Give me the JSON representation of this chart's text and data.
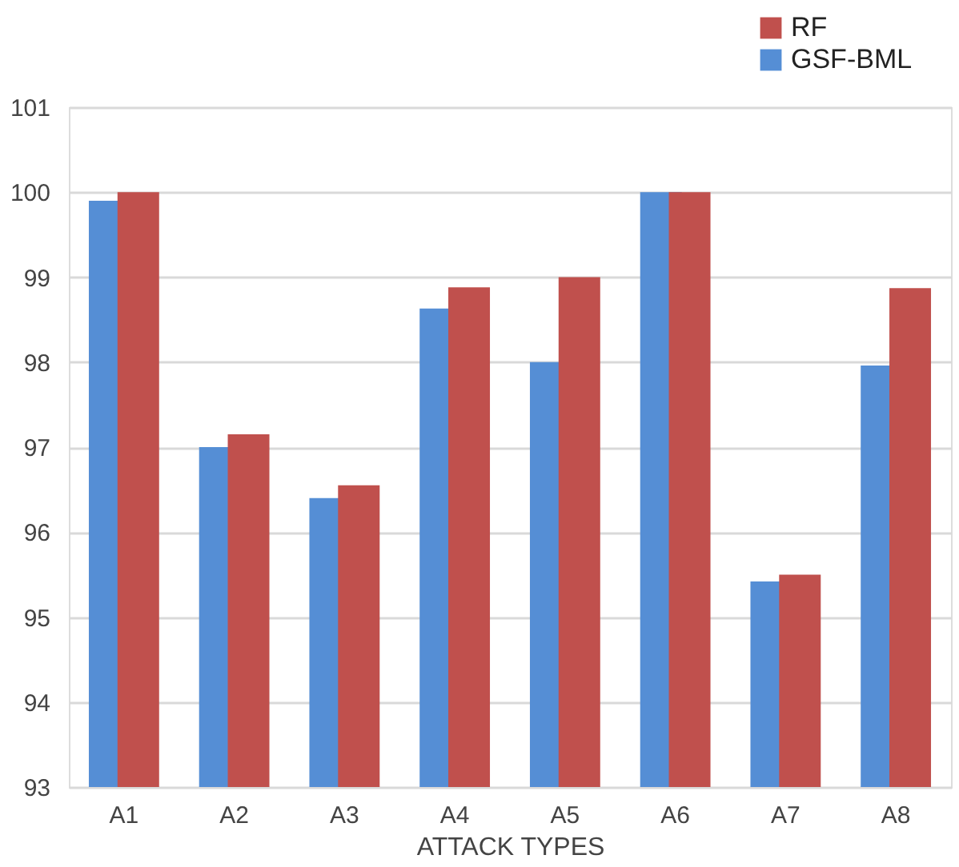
{
  "chart_data": {
    "type": "bar",
    "xlabel": "ATTACK TYPES",
    "categories": [
      "A1",
      "A2",
      "A3",
      "A4",
      "A5",
      "A6",
      "A7",
      "A8"
    ],
    "series": [
      {
        "name": "GSF-BML",
        "color": "#558ed5",
        "values": [
          99.9,
          97.0,
          96.4,
          98.63,
          98.0,
          100.0,
          95.42,
          97.96
        ]
      },
      {
        "name": "RF",
        "color": "#c0504d",
        "values": [
          100.0,
          97.15,
          96.55,
          98.88,
          99.0,
          100.0,
          95.5,
          98.87
        ]
      }
    ],
    "ylim": [
      93,
      101
    ],
    "yticks": [
      93,
      94,
      95,
      96,
      97,
      98,
      99,
      100,
      101
    ],
    "grid": "y",
    "legend": "top right"
  }
}
